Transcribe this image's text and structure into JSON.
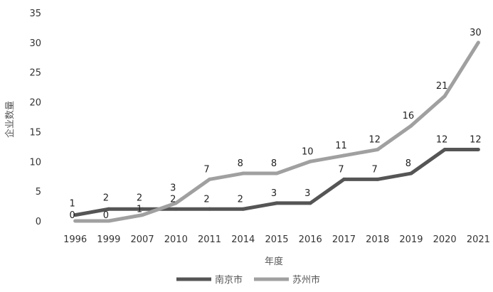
{
  "chart_data": {
    "type": "line",
    "title": "",
    "xlabel": "年度",
    "ylabel": "企业数量",
    "categories": [
      "1996",
      "1999",
      "2007",
      "2010",
      "2011",
      "2014",
      "2015",
      "2016",
      "2017",
      "2018",
      "2019",
      "2020",
      "2021"
    ],
    "ylim": [
      0,
      35
    ],
    "yticks": [
      0,
      5,
      10,
      15,
      20,
      25,
      30,
      35
    ],
    "grid": false,
    "legend_position": "bottom",
    "series": [
      {
        "name": "南京市",
        "color": "#555555",
        "values": [
          1,
          2,
          2,
          2,
          2,
          2,
          3,
          3,
          7,
          7,
          8,
          12,
          12
        ]
      },
      {
        "name": "苏州市",
        "color": "#a0a0a0",
        "values": [
          0,
          0,
          1,
          3,
          7,
          8,
          8,
          10,
          11,
          12,
          16,
          21,
          30
        ]
      }
    ]
  }
}
